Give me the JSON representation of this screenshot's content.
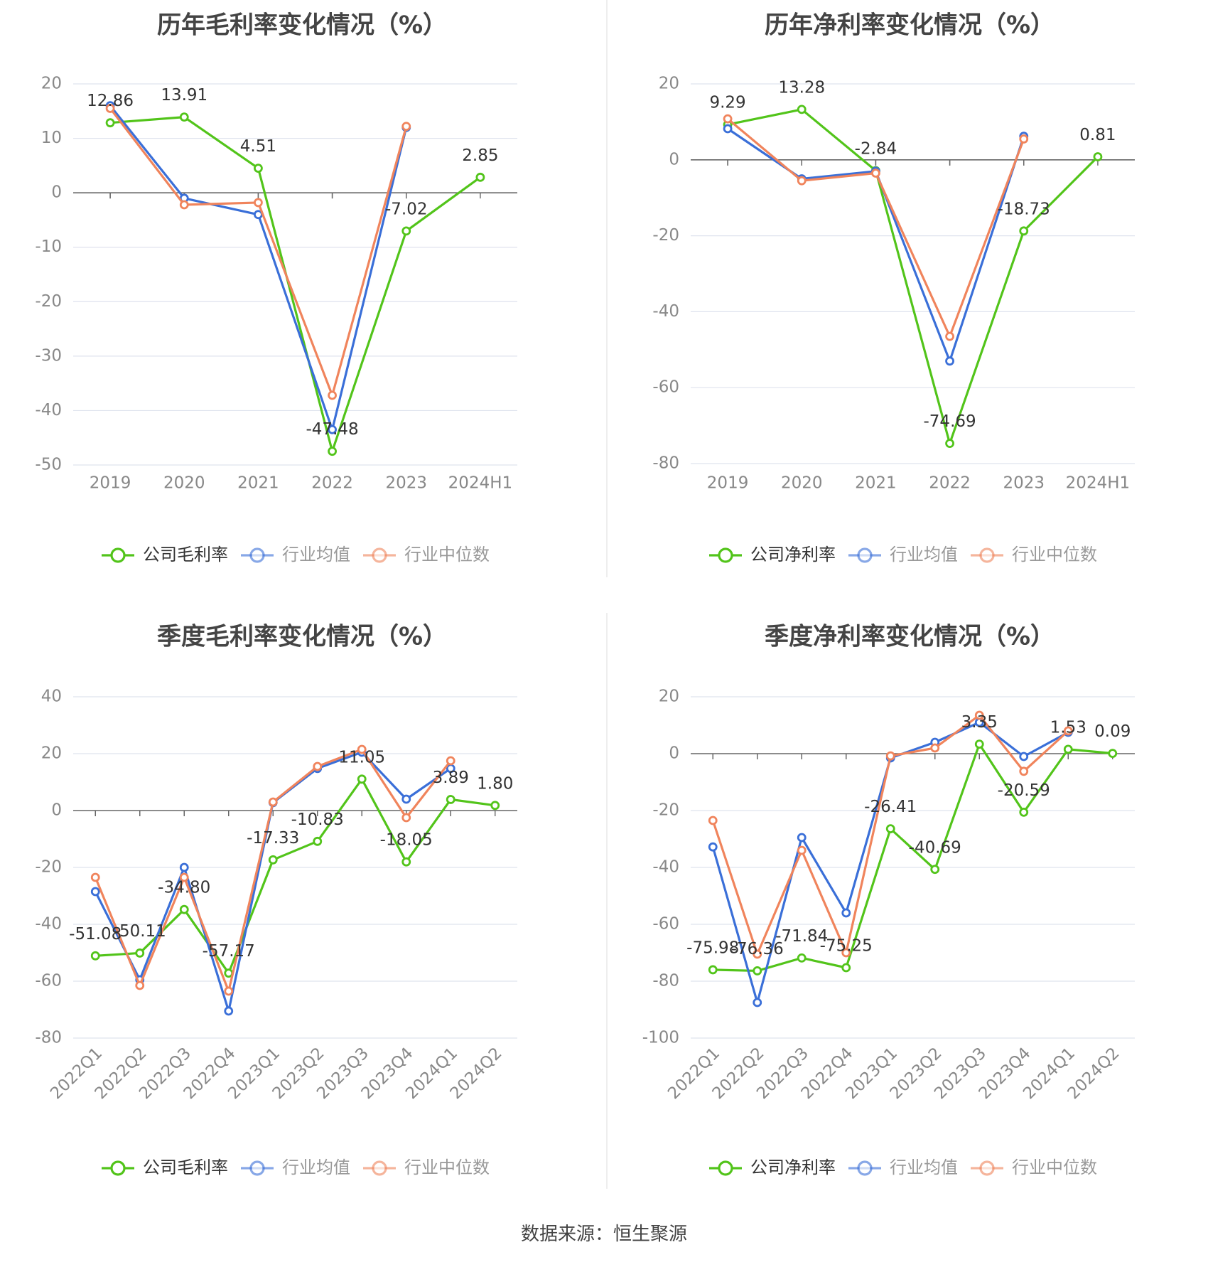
{
  "source": "数据来源：恒生聚源",
  "colors": {
    "company": "#52c41a",
    "avg": "#3a6fd8",
    "median": "#f0845c"
  },
  "chart_data": [
    {
      "type": "line",
      "title": "历年毛利率变化情况（%）",
      "categories": [
        "2019",
        "2020",
        "2021",
        "2022",
        "2023",
        "2024H1"
      ],
      "ylim": [
        -50,
        20
      ],
      "yticks": [
        20,
        10,
        0,
        -10,
        -20,
        -30,
        -40,
        -50
      ],
      "grid": true,
      "legend_position": "bottom",
      "series": [
        {
          "name": "公司毛利率",
          "key": "company",
          "values": [
            12.86,
            13.91,
            4.51,
            -47.48,
            -7.02,
            2.85
          ],
          "labels": [
            "12.86",
            "13.91",
            "4.51",
            "-47.48",
            "-7.02",
            "2.85"
          ]
        },
        {
          "name": "行业均值",
          "key": "avg",
          "values": [
            16.0,
            -1.0,
            -4.0,
            -43.5,
            12.0,
            null
          ]
        },
        {
          "name": "行业中位数",
          "key": "median",
          "values": [
            15.5,
            -2.2,
            -1.8,
            -37.2,
            12.2,
            null
          ]
        }
      ]
    },
    {
      "type": "line",
      "title": "历年净利率变化情况（%）",
      "categories": [
        "2019",
        "2020",
        "2021",
        "2022",
        "2023",
        "2024H1"
      ],
      "ylim": [
        -80,
        20
      ],
      "yticks": [
        20,
        0,
        -20,
        -40,
        -60,
        -80
      ],
      "grid": true,
      "legend_position": "bottom",
      "series": [
        {
          "name": "公司净利率",
          "key": "company",
          "values": [
            9.29,
            13.28,
            -2.84,
            -74.69,
            -18.73,
            0.81
          ],
          "labels": [
            "9.29",
            "13.28",
            "-2.84",
            "-74.69",
            "-18.73",
            "0.81"
          ]
        },
        {
          "name": "行业均值",
          "key": "avg",
          "values": [
            8.2,
            -5.0,
            -3.0,
            -53.0,
            6.2,
            null
          ]
        },
        {
          "name": "行业中位数",
          "key": "median",
          "values": [
            10.8,
            -5.5,
            -3.5,
            -46.5,
            5.5,
            null
          ]
        }
      ]
    },
    {
      "type": "line",
      "title": "季度毛利率变化情况（%）",
      "categories": [
        "2022Q1",
        "2022Q2",
        "2022Q3",
        "2022Q4",
        "2023Q1",
        "2023Q2",
        "2023Q3",
        "2023Q4",
        "2024Q1",
        "2024Q2"
      ],
      "ylim": [
        -80,
        40
      ],
      "yticks": [
        40,
        20,
        0,
        -20,
        -40,
        -60,
        -80
      ],
      "grid": true,
      "legend_position": "bottom",
      "series": [
        {
          "name": "公司毛利率",
          "key": "company",
          "values": [
            -51.08,
            -50.11,
            -34.8,
            -57.17,
            -17.33,
            -10.83,
            11.05,
            -18.05,
            3.89,
            1.8
          ],
          "labels": [
            "-51.08",
            "-50.11",
            "-34.80",
            "-57.17",
            "-17.33",
            "-10.83",
            "11.05",
            "-18.05",
            "3.89",
            "1.80"
          ]
        },
        {
          "name": "行业均值",
          "key": "avg",
          "values": [
            -28.5,
            -59.5,
            -20.0,
            -70.5,
            2.8,
            14.8,
            20.5,
            4.0,
            14.8,
            null
          ]
        },
        {
          "name": "行业中位数",
          "key": "median",
          "values": [
            -23.5,
            -61.5,
            -23.5,
            -63.5,
            3.0,
            15.5,
            21.5,
            -2.5,
            17.5,
            null
          ]
        }
      ]
    },
    {
      "type": "line",
      "title": "季度净利率变化情况（%）",
      "categories": [
        "2022Q1",
        "2022Q2",
        "2022Q3",
        "2022Q4",
        "2023Q1",
        "2023Q2",
        "2023Q3",
        "2023Q4",
        "2024Q1",
        "2024Q2"
      ],
      "ylim": [
        -100,
        20
      ],
      "yticks": [
        20,
        0,
        -20,
        -40,
        -60,
        -80,
        -100
      ],
      "grid": true,
      "legend_position": "bottom",
      "series": [
        {
          "name": "公司净利率",
          "key": "company",
          "values": [
            -75.98,
            -76.36,
            -71.84,
            -75.25,
            -26.41,
            -40.69,
            3.35,
            -20.59,
            1.53,
            0.09
          ],
          "labels": [
            "-75.98",
            "-76.36",
            "-71.84",
            "-75.25",
            "-26.41",
            "-40.69",
            "3.35",
            "-20.59",
            "1.53",
            "0.09"
          ]
        },
        {
          "name": "行业均值",
          "key": "avg",
          "values": [
            -32.8,
            -87.5,
            -29.5,
            -56.0,
            -1.5,
            4.0,
            11.0,
            -1.0,
            7.5,
            null
          ]
        },
        {
          "name": "行业中位数",
          "key": "median",
          "values": [
            -23.5,
            -70.5,
            -34.0,
            -70.0,
            -0.8,
            2.0,
            13.5,
            -6.2,
            8.0,
            null
          ]
        }
      ]
    }
  ]
}
